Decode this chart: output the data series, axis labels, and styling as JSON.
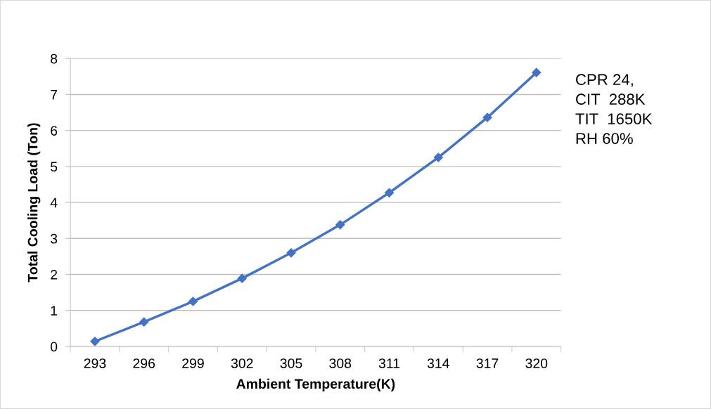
{
  "chart_data": {
    "type": "line",
    "xlabel": "Ambient Temperature(K)",
    "ylabel": "Total Cooling Load (Ton)",
    "categories": [
      "293",
      "296",
      "299",
      "302",
      "305",
      "308",
      "311",
      "314",
      "317",
      "320"
    ],
    "series": [
      {
        "color": "#4472c4",
        "values": [
          0.14,
          0.68,
          1.25,
          1.89,
          2.6,
          3.38,
          4.27,
          5.25,
          6.36,
          7.61
        ]
      }
    ],
    "ylim": [
      0,
      8
    ],
    "yticks": [
      0,
      1,
      2,
      3,
      4,
      5,
      6,
      7,
      8
    ],
    "grid": "y",
    "marker": "diamond",
    "line_style": "solid",
    "annotations": [
      "CPR 24,\nCIT  288K\nTIT  1650K\nRH 60%"
    ]
  }
}
